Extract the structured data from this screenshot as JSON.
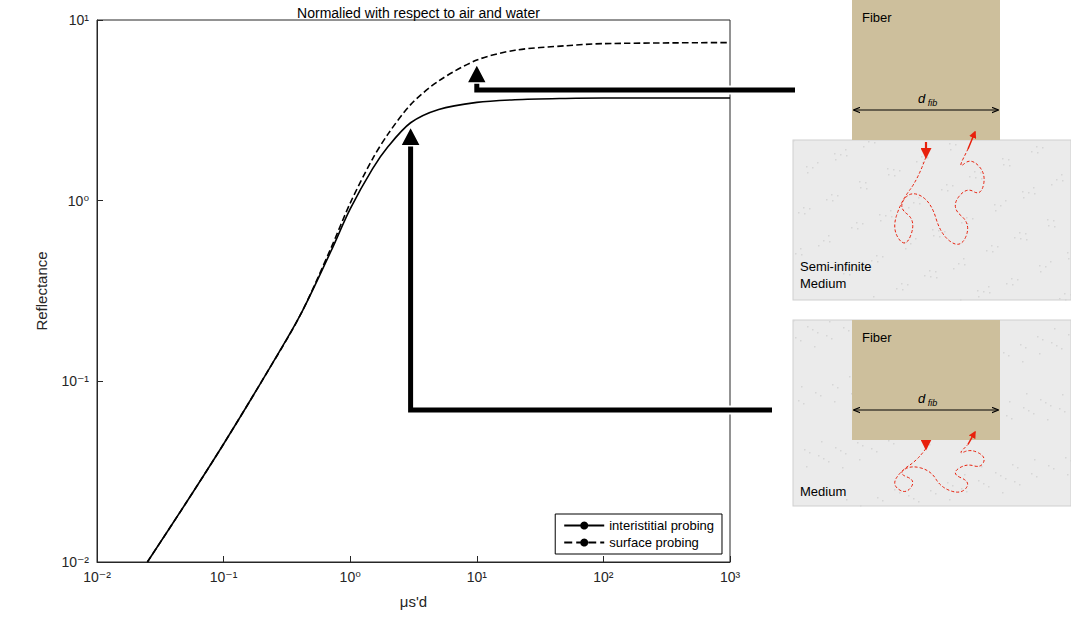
{
  "chart_data": {
    "type": "line",
    "title": "Normalied with respect to air and water",
    "x_label": "μs'd",
    "y_label": "Reflectance",
    "log": true,
    "grid": false,
    "legend": "lower right",
    "xlim": [
      0.01,
      1000
    ],
    "ylim": [
      0.01,
      10
    ],
    "xticks": [
      {
        "value": 0.01,
        "label": "10⁻²"
      },
      {
        "value": 0.1,
        "label": "10⁻¹"
      },
      {
        "value": 1,
        "label": "10⁰"
      },
      {
        "value": 10,
        "label": "10¹"
      },
      {
        "value": 100,
        "label": "10²"
      },
      {
        "value": 1000,
        "label": "10³"
      }
    ],
    "yticks": [
      {
        "value": 0.01,
        "label": "10⁻²"
      },
      {
        "value": 0.1,
        "label": "10⁻¹"
      },
      {
        "value": 1,
        "label": "10⁰"
      },
      {
        "value": 10,
        "label": "10¹"
      }
    ],
    "x": [
      0.025,
      0.05,
      0.1,
      0.2,
      0.4,
      0.7,
      1,
      1.5,
      2,
      3,
      5,
      10,
      20,
      50,
      100,
      1000
    ],
    "series": [
      {
        "name": "interistitial probing",
        "color": "#000000",
        "line_style": "solid",
        "values": [
          0.01,
          0.021,
          0.045,
          0.1,
          0.23,
          0.52,
          0.9,
          1.5,
          2.0,
          2.7,
          3.2,
          3.5,
          3.62,
          3.68,
          3.7,
          3.7
        ]
      },
      {
        "name": "surface probing",
        "color": "#000000",
        "line_style": "dashed",
        "values": [
          0.01,
          0.021,
          0.045,
          0.1,
          0.23,
          0.54,
          0.97,
          1.7,
          2.35,
          3.4,
          4.6,
          6.0,
          6.8,
          7.2,
          7.4,
          7.5
        ]
      }
    ]
  },
  "diagrams": [
    {
      "fiber": "Fiber",
      "diameter": {
        "symbol": "d",
        "subscript": "fib"
      },
      "medium": "Semi-infinite Medium"
    },
    {
      "fiber": "Fiber",
      "diameter": {
        "symbol": "d",
        "subscript": "fib"
      },
      "medium": "Medium"
    }
  ]
}
